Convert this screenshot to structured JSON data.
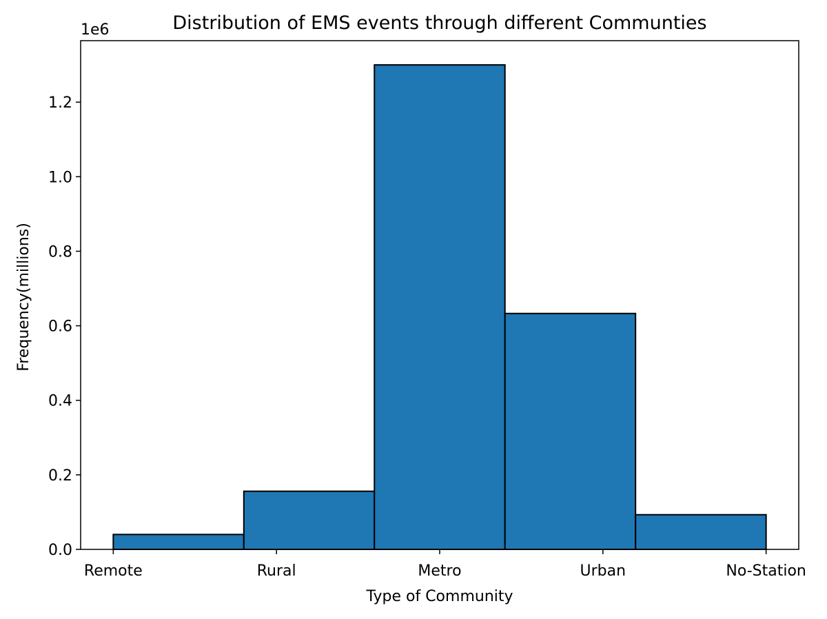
{
  "chart_data": {
    "type": "bar",
    "title": "Distribution of EMS events through different Communties",
    "xlabel": "Type of Community",
    "ylabel": "Frequency(millions)",
    "y_offset_label": "1e6",
    "x_tick_labels": [
      "Remote",
      "Rural",
      "Metro",
      "Urban",
      "No-Station"
    ],
    "bins": [
      {
        "start": 0.0,
        "end": 0.8,
        "value": 40000
      },
      {
        "start": 0.8,
        "end": 1.6,
        "value": 156000
      },
      {
        "start": 1.6,
        "end": 2.4,
        "value": 1300000
      },
      {
        "start": 2.4,
        "end": 3.2,
        "value": 633000
      },
      {
        "start": 3.2,
        "end": 4.0,
        "value": 93000
      }
    ],
    "xlim": [
      -0.2,
      4.2
    ],
    "ylim": [
      0,
      1365000
    ],
    "y_ticks": [
      0,
      200000,
      400000,
      600000,
      800000,
      1000000,
      1200000
    ],
    "y_tick_labels": [
      "0.0",
      "0.2",
      "0.4",
      "0.6",
      "0.8",
      "1.0",
      "1.2"
    ],
    "grid": false,
    "colors": {
      "bar_fill": "#1f77b4",
      "bar_edge": "#000000"
    }
  }
}
